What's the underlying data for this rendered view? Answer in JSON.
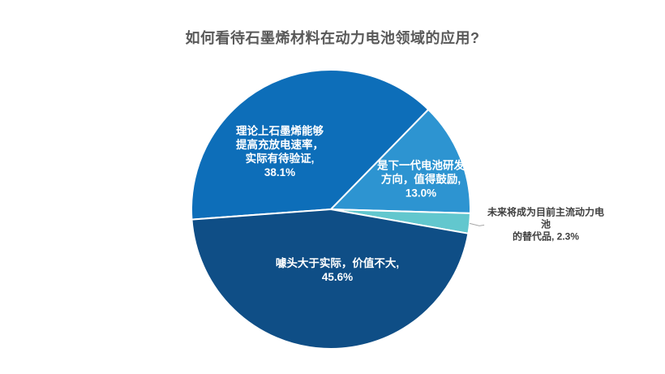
{
  "chart_data": {
    "type": "pie",
    "title": "如何看待石墨烯材料在动力电池领域的应用?",
    "title_color": "#595959",
    "legend": "none",
    "direction": "clockwise",
    "start_angle_deg": 265.8,
    "leader_line_color": "#A6A6A6",
    "slices": [
      {
        "name": "理论上石墨烯能够提高充放电速率，实际有待验证",
        "value": 38.1,
        "pct_label": "38.1%",
        "label": "理论上石墨烯能够\n提高充放电速率，\n实际有待验证,\n38.1%",
        "color": "#0D6EB9",
        "label_color": "#FFFFFF",
        "label_position": "inside"
      },
      {
        "name": "是下一代电池研发方向，值得鼓励",
        "value": 13.0,
        "pct_label": "13.0%",
        "label": "是下一代电池研发\n方向，值得鼓励,\n13.0%",
        "color": "#2D94D1",
        "label_color": "#FFFFFF",
        "label_position": "inside"
      },
      {
        "name": "未来将成为目前主流动力电池的替代品",
        "value": 2.3,
        "pct_label": "2.3%",
        "label": "未来将成为目前主流动力电池\n的替代品, 2.3%",
        "color": "#62C7CE",
        "label_color": "#404040",
        "label_position": "outside"
      },
      {
        "name": "噱头大于实际，价值不大",
        "value": 45.6,
        "pct_label": "45.6%",
        "label": "噱头大于实际，价值不大,\n45.6%",
        "color": "#0F4E86",
        "label_color": "#FFFFFF",
        "label_position": "inside"
      }
    ]
  }
}
